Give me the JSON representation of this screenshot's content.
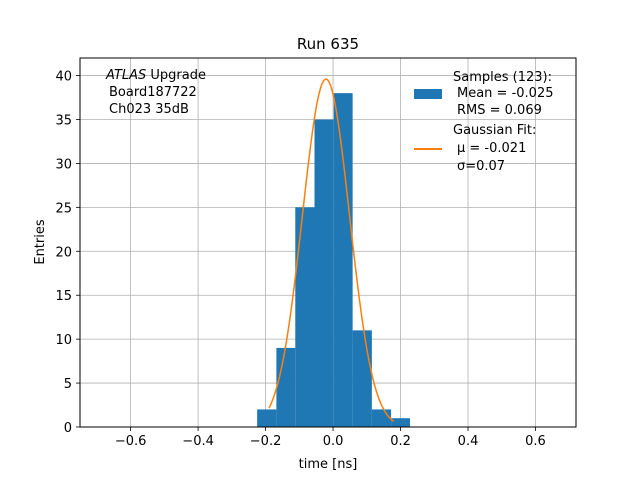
{
  "chart_data": {
    "type": "bar",
    "title": "Run 635",
    "xlabel": "time [ns]",
    "ylabel": "Entries",
    "xlim": [
      -0.75,
      0.72
    ],
    "ylim": [
      0,
      42
    ],
    "xticks": [
      -0.6,
      -0.4,
      -0.2,
      0.0,
      0.2,
      0.4,
      0.6
    ],
    "xtick_labels": [
      "−0.6",
      "−0.4",
      "−0.2",
      "0.0",
      "0.2",
      "0.4",
      "0.6"
    ],
    "yticks": [
      0,
      5,
      10,
      15,
      20,
      25,
      30,
      35,
      40
    ],
    "grid": true,
    "legend_position": "top-right",
    "colors": {
      "histogram": "#1f77b4",
      "fit": "#ff7f0e"
    },
    "annotation": [
      "ATLAS",
      " Upgrade",
      "Board187722",
      "Ch023 35dB"
    ],
    "histogram": {
      "name": "Samples (123):",
      "bin_edges": [
        -0.225,
        -0.168,
        -0.112,
        -0.055,
        0.002,
        0.058,
        0.115,
        0.172,
        0.228
      ],
      "counts": [
        2,
        9,
        25,
        35,
        38,
        11,
        2,
        1
      ]
    },
    "histogram_stats": [
      "Mean = -0.025",
      "RMS = 0.069"
    ],
    "fit": {
      "name": "Gaussian Fit:",
      "model": "gaussian",
      "amplitude": 39.6,
      "mu": -0.021,
      "sigma": 0.07,
      "x_range": [
        -0.19,
        0.18
      ]
    },
    "fit_stats": [
      "μ = -0.021",
      "σ=0.07"
    ]
  }
}
